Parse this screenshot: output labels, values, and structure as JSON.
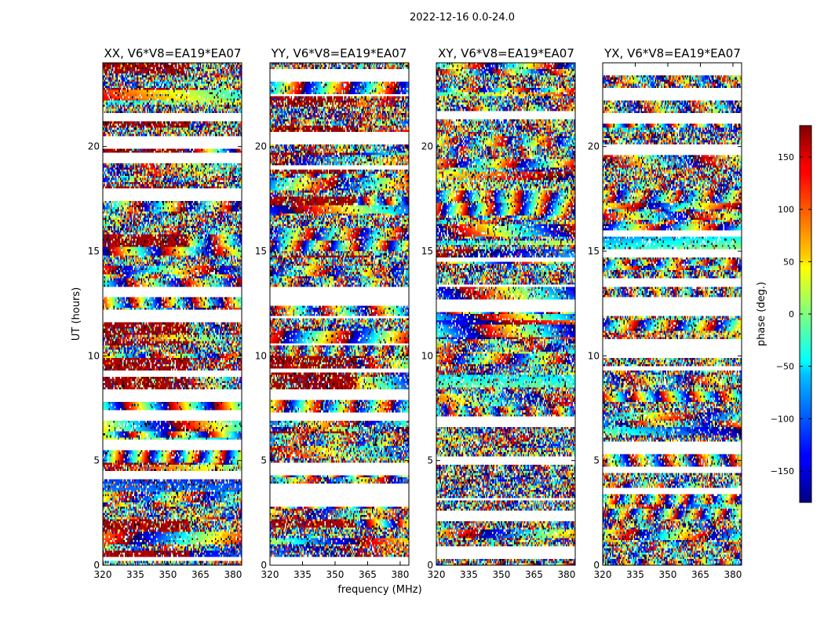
{
  "figure": {
    "suptitle": "2022-12-16 0.0-24.0"
  },
  "chart_data": {
    "type": "heatmap",
    "xlabel": "frequency (MHz)",
    "ylabel": "UT (hours)",
    "xlim": [
      320,
      384
    ],
    "ylim": [
      0,
      24
    ],
    "xticks": [
      320,
      335,
      350,
      365,
      380
    ],
    "yticks": [
      0,
      5,
      10,
      15,
      20
    ],
    "grid": false,
    "panels": [
      {
        "title": "XX, V6*V8=EA19*EA07",
        "pol": "XX"
      },
      {
        "title": "YY, V6*V8=EA19*EA07",
        "pol": "YY"
      },
      {
        "title": "XY, V6*V8=EA19*EA07",
        "pol": "XY"
      },
      {
        "title": "YX, V6*V8=EA19*EA07",
        "pol": "YX"
      }
    ],
    "colorbar": {
      "label": "phase (deg.)",
      "range": [
        -180,
        180
      ],
      "ticks": [
        150,
        100,
        50,
        0,
        -50,
        -100,
        -150
      ],
      "tick_labels": [
        "150",
        "100",
        "50",
        "0",
        "−50",
        "−100",
        "−150"
      ],
      "colormap": "jet"
    }
  }
}
